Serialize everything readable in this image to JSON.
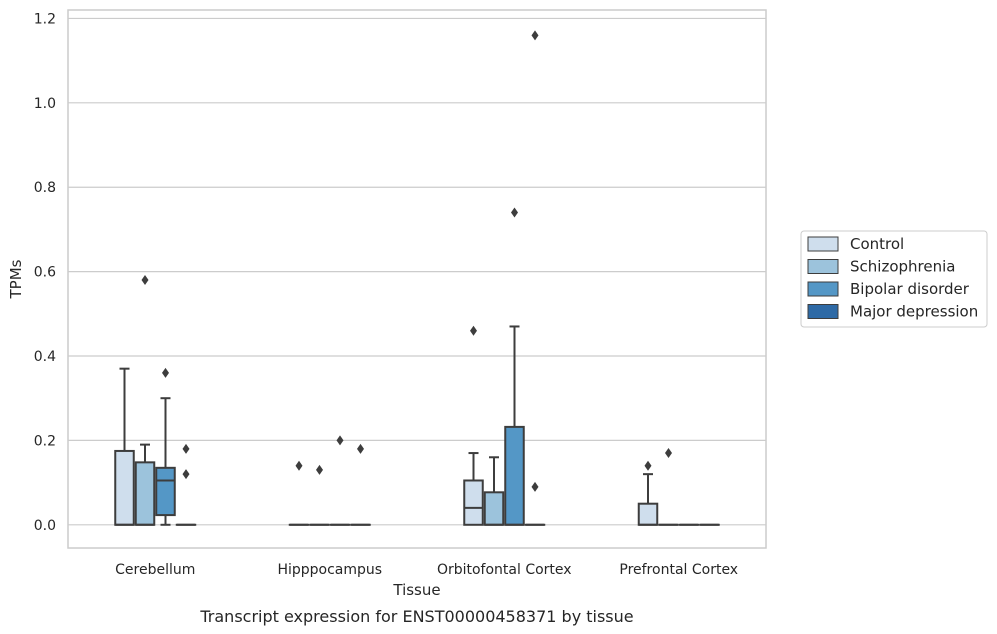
{
  "chart_data": {
    "type": "box",
    "title": "",
    "caption": "Transcript expression for ENST00000458371 by tissue",
    "xlabel": "Tissue",
    "ylabel": "TPMs",
    "ylim": [
      -0.055,
      1.22
    ],
    "yticks": [
      0.0,
      0.2,
      0.4,
      0.6,
      0.8,
      1.0,
      1.2
    ],
    "ytick_labels": [
      "0.0",
      "0.2",
      "0.4",
      "0.6",
      "0.8",
      "1.0",
      "1.2"
    ],
    "grid": "horizontal",
    "legend_position": "right",
    "categories": [
      "Cerebellum",
      "Hipppocampus",
      "Orbitofontal Cortex",
      "Prefrontal Cortex"
    ],
    "series": [
      {
        "name": "Control",
        "color": "#cfdeed",
        "boxes": [
          {
            "whisker_low": 0,
            "q1": 0,
            "median": 0,
            "q3": 0.175,
            "whisker_high": 0.37,
            "outliers": []
          },
          {
            "whisker_low": 0,
            "q1": 0,
            "median": 0,
            "q3": 0,
            "whisker_high": 0,
            "outliers": [
              0.14
            ]
          },
          {
            "whisker_low": 0,
            "q1": 0,
            "median": 0.04,
            "q3": 0.105,
            "whisker_high": 0.17,
            "outliers": [
              0.46
            ]
          },
          {
            "whisker_low": 0,
            "q1": 0,
            "median": 0,
            "q3": 0.05,
            "whisker_high": 0.12,
            "outliers": [
              0.14
            ]
          }
        ]
      },
      {
        "name": "Schizophrenia",
        "color": "#9cc3dc",
        "boxes": [
          {
            "whisker_low": 0,
            "q1": 0,
            "median": 0,
            "q3": 0.148,
            "whisker_high": 0.19,
            "outliers": [
              0.58
            ]
          },
          {
            "whisker_low": 0,
            "q1": 0,
            "median": 0,
            "q3": 0,
            "whisker_high": 0,
            "outliers": [
              0.13
            ]
          },
          {
            "whisker_low": 0,
            "q1": 0,
            "median": 0,
            "q3": 0.077,
            "whisker_high": 0.16,
            "outliers": []
          },
          {
            "whisker_low": 0,
            "q1": 0,
            "median": 0,
            "q3": 0,
            "whisker_high": 0,
            "outliers": [
              0.17
            ]
          }
        ]
      },
      {
        "name": "Bipolar disorder",
        "color": "#5497c6",
        "boxes": [
          {
            "whisker_low": 0,
            "q1": 0.023,
            "median": 0.105,
            "q3": 0.135,
            "whisker_high": 0.3,
            "outliers": [
              0.36
            ]
          },
          {
            "whisker_low": 0,
            "q1": 0,
            "median": 0,
            "q3": 0,
            "whisker_high": 0,
            "outliers": [
              0.2
            ]
          },
          {
            "whisker_low": 0,
            "q1": 0,
            "median": 0,
            "q3": 0.232,
            "whisker_high": 0.47,
            "outliers": [
              0.74
            ]
          },
          {
            "whisker_low": 0,
            "q1": 0,
            "median": 0,
            "q3": 0,
            "whisker_high": 0,
            "outliers": []
          }
        ]
      },
      {
        "name": "Major depression",
        "color": "#2e6aa6",
        "boxes": [
          {
            "whisker_low": 0,
            "q1": 0,
            "median": 0,
            "q3": 0,
            "whisker_high": 0,
            "outliers": [
              0.18,
              0.12
            ]
          },
          {
            "whisker_low": 0,
            "q1": 0,
            "median": 0,
            "q3": 0,
            "whisker_high": 0,
            "outliers": [
              0.18
            ]
          },
          {
            "whisker_low": 0,
            "q1": 0,
            "median": 0,
            "q3": 0,
            "whisker_high": 0,
            "outliers": [
              1.16,
              0.09
            ]
          },
          {
            "whisker_low": 0,
            "q1": 0,
            "median": 0,
            "q3": 0,
            "whisker_high": 0,
            "outliers": []
          }
        ]
      }
    ]
  }
}
